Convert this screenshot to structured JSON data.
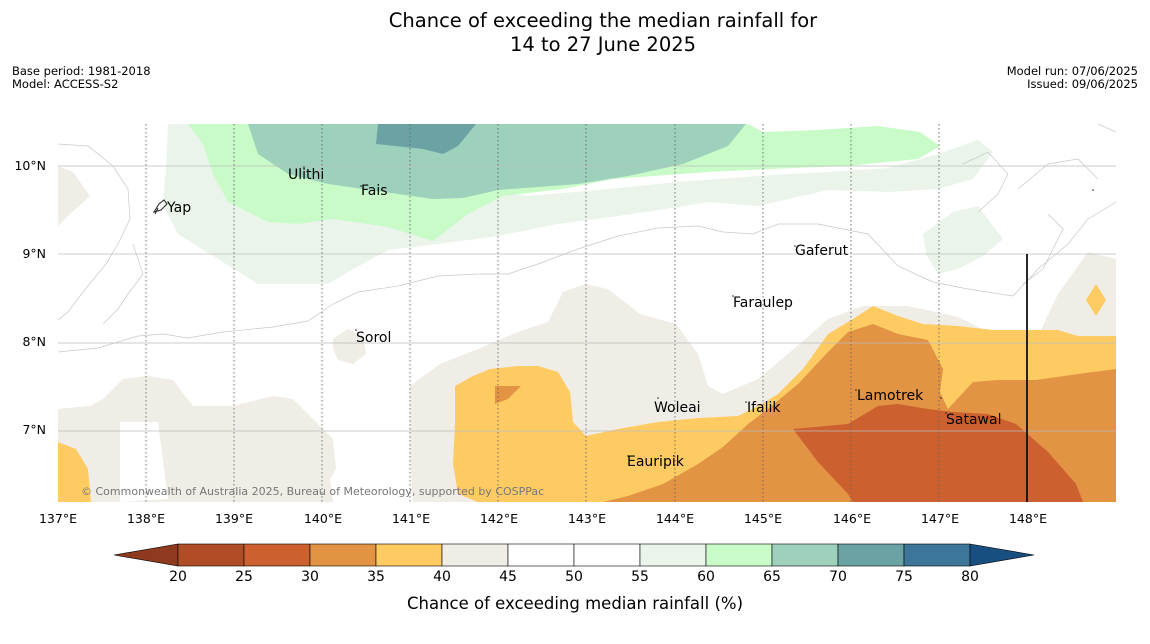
{
  "title": {
    "line1": "Chance of exceeding the median rainfall for",
    "line2": "14 to 27 June 2025"
  },
  "meta": {
    "base_period": "Base period: 1981-2018",
    "model": "Model: ACCESS-S2",
    "model_run": "Model run: 07/06/2025",
    "issued": "Issued: 09/06/2025"
  },
  "axes": {
    "lat_ticks": [
      "10°N",
      "9°N",
      "8°N",
      "7°N"
    ],
    "lon_ticks": [
      "137°E",
      "138°E",
      "139°E",
      "140°E",
      "141°E",
      "142°E",
      "143°E",
      "144°E",
      "145°E",
      "146°E",
      "147°E",
      "148°E"
    ]
  },
  "places": [
    "Ulithi",
    "Fais",
    "Yap",
    "Gaferut",
    "Faraulep",
    "Sorol",
    "Woleai",
    "Ifalik",
    "Lamotrek",
    "Satawal",
    "Eauripik"
  ],
  "copyright": "© Commonwealth of Australia 2025, Bureau of Meteorology, supported by COSPPac",
  "colorbar": {
    "title": "Chance of exceeding median rainfall (%)",
    "ticks": [
      "20",
      "25",
      "30",
      "35",
      "40",
      "45",
      "50",
      "55",
      "60",
      "65",
      "70",
      "75",
      "80"
    ],
    "colors": [
      "#8f3a1f",
      "#b14d26",
      "#cc612f",
      "#e29343",
      "#fecb63",
      "#f0ece6",
      "#ffffff",
      "#ffffff",
      "#eaf4ea",
      "#c9fbc8",
      "#9dd1bc",
      "#6ba3a4",
      "#3d7699",
      "#194f80"
    ]
  }
}
